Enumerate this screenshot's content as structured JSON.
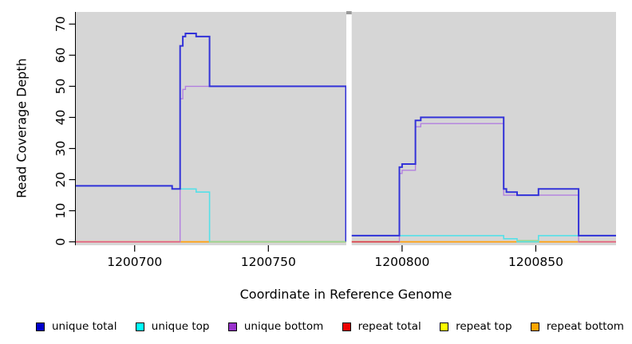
{
  "figure": {
    "background": "#ffffff",
    "panel_background": "#d6d6d6",
    "axis_color": "#000000",
    "gap_top_mark_color": "#999999"
  },
  "chart_data": {
    "type": "line",
    "subtype": "step-coverage",
    "title": "",
    "xlabel": "Coordinate in Reference Genome",
    "ylabel": "Read Coverage Depth",
    "xlim": [
      1200678,
      1200880
    ],
    "ylim": [
      -1.1,
      73.9
    ],
    "x_ticks": [
      1200700,
      1200750,
      1200800,
      1200850
    ],
    "y_ticks": [
      0,
      10,
      20,
      30,
      40,
      50,
      60,
      70
    ],
    "grid": false,
    "legend_position": "bottom",
    "gap_region": {
      "start": 1200779,
      "end": 1200781,
      "color": "#ffffff"
    },
    "series": [
      {
        "name": "unique total",
        "color": "#3232d8",
        "legend_color": "#0000cc",
        "width": 2,
        "segments": [
          [
            1200678,
            1200714,
            18
          ],
          [
            1200714,
            1200717,
            17
          ],
          [
            1200717,
            1200718,
            63
          ],
          [
            1200718,
            1200719,
            66
          ],
          [
            1200719,
            1200723,
            67
          ],
          [
            1200723,
            1200728,
            66
          ],
          [
            1200728,
            1200779,
            50
          ],
          [
            1200781,
            1200799,
            2
          ],
          [
            1200799,
            1200800,
            24
          ],
          [
            1200800,
            1200805,
            25
          ],
          [
            1200805,
            1200807,
            39
          ],
          [
            1200807,
            1200838,
            40
          ],
          [
            1200838,
            1200839,
            17
          ],
          [
            1200839,
            1200843,
            16
          ],
          [
            1200843,
            1200851,
            15
          ],
          [
            1200851,
            1200866,
            17
          ],
          [
            1200866,
            1200880,
            2
          ]
        ]
      },
      {
        "name": "unique top",
        "color": "#55e0e8",
        "legend_color": "#00ffff",
        "width": 1.6,
        "segments": [
          [
            1200678,
            1200714,
            18
          ],
          [
            1200714,
            1200723,
            17
          ],
          [
            1200723,
            1200728,
            16
          ],
          [
            1200728,
            1200779,
            0
          ],
          [
            1200781,
            1200838,
            2
          ],
          [
            1200838,
            1200843,
            1
          ],
          [
            1200843,
            1200851,
            0
          ],
          [
            1200851,
            1200880,
            2
          ]
        ]
      },
      {
        "name": "unique bottom",
        "color": "#b27fe0",
        "legend_color": "#9932cc",
        "width": 1.4,
        "segments": [
          [
            1200678,
            1200717,
            0
          ],
          [
            1200717,
            1200718,
            46
          ],
          [
            1200718,
            1200719,
            49
          ],
          [
            1200719,
            1200779,
            50
          ],
          [
            1200781,
            1200799,
            0
          ],
          [
            1200799,
            1200800,
            22
          ],
          [
            1200800,
            1200805,
            23
          ],
          [
            1200805,
            1200807,
            37
          ],
          [
            1200807,
            1200838,
            38
          ],
          [
            1200838,
            1200866,
            15
          ],
          [
            1200866,
            1200880,
            0
          ]
        ]
      },
      {
        "name": "repeat total",
        "color": "#d94f70",
        "legend_color": "#ee0000",
        "width": 1.2,
        "segments": [
          [
            1200678,
            1200779,
            0
          ],
          [
            1200781,
            1200880,
            0
          ]
        ]
      },
      {
        "name": "repeat top",
        "color": "#f0f000",
        "legend_color": "#ffff00",
        "width": 1,
        "segments": [
          [
            1200678,
            1200779,
            0
          ],
          [
            1200781,
            1200880,
            0
          ]
        ]
      },
      {
        "name": "repeat bottom",
        "color": "#ffa318",
        "legend_color": "#ffa500",
        "width": 1.8,
        "segments": [
          [
            1200678,
            1200779,
            0
          ],
          [
            1200781,
            1200880,
            0
          ]
        ]
      }
    ],
    "draw_order": [
      4,
      3,
      5,
      1,
      2,
      0
    ],
    "baseline_overlay_segments": [
      {
        "start": 1200678,
        "end": 1200717,
        "color": "#e0608a",
        "lift": 0
      },
      {
        "start": 1200728,
        "end": 1200779,
        "color": "#96d896",
        "lift": 0
      },
      {
        "start": 1200781,
        "end": 1200799,
        "color": "#d84058",
        "lift": 0
      },
      {
        "start": 1200843,
        "end": 1200851,
        "color": "#96d896",
        "lift": 1.5
      },
      {
        "start": 1200866,
        "end": 1200880,
        "color": "#e0608a",
        "lift": 0
      }
    ]
  },
  "legend": {
    "items": [
      {
        "label": "unique total",
        "color": "#0000cc"
      },
      {
        "label": "unique top",
        "color": "#00ffff"
      },
      {
        "label": "unique bottom",
        "color": "#9932cc"
      },
      {
        "label": "repeat total",
        "color": "#ee0000"
      },
      {
        "label": "repeat top",
        "color": "#ffff00"
      },
      {
        "label": "repeat bottom",
        "color": "#ffa500"
      }
    ]
  }
}
